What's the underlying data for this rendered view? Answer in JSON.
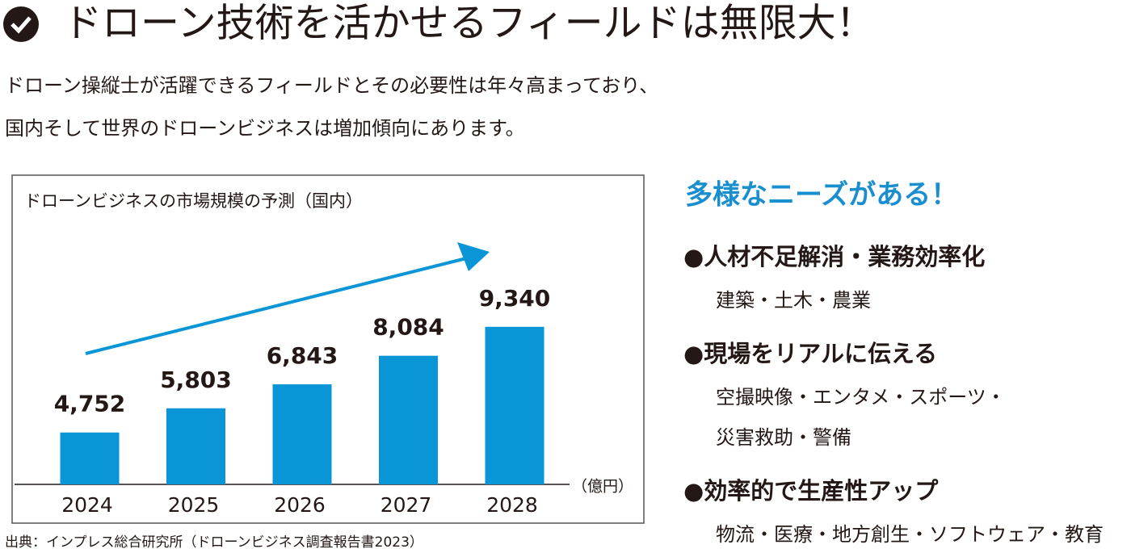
{
  "header": {
    "title": "ドローン技術を活かせるフィールドは無限大！"
  },
  "intro": [
    "ドローン操縦士が活躍できるフィールドとその必要性は年々高まっており、",
    "国内そして世界のドローンビジネスは増加傾向にあります。"
  ],
  "chart_data": {
    "type": "bar",
    "title": "ドローンビジネスの市場規模の予測（国内）",
    "categories": [
      "2024",
      "2025",
      "2026",
      "2027",
      "2028"
    ],
    "values": [
      4752,
      5803,
      6843,
      8084,
      9340
    ],
    "value_labels": [
      "4,752",
      "5,803",
      "6,843",
      "8,084",
      "9,340"
    ],
    "unit": "（億円）",
    "color": "#0a96d6",
    "ylim": [
      2500,
      10000
    ],
    "source": "出典：インプレス総合研究所（ドローンビジネス調査報告書2023）"
  },
  "needs": {
    "title": "多様なニーズがある！",
    "items": [
      {
        "heading": "●人材不足解消・業務効率化",
        "lines": [
          "建築・土木・農業"
        ]
      },
      {
        "heading": "●現場をリアルに伝える",
        "lines": [
          "空撮映像・エンタメ・スポーツ・",
          "災害救助・警備"
        ]
      },
      {
        "heading": "●効率的で生産性アップ",
        "lines": [
          "物流・医療・地方創生・ソフトウェア・教育"
        ]
      }
    ]
  }
}
